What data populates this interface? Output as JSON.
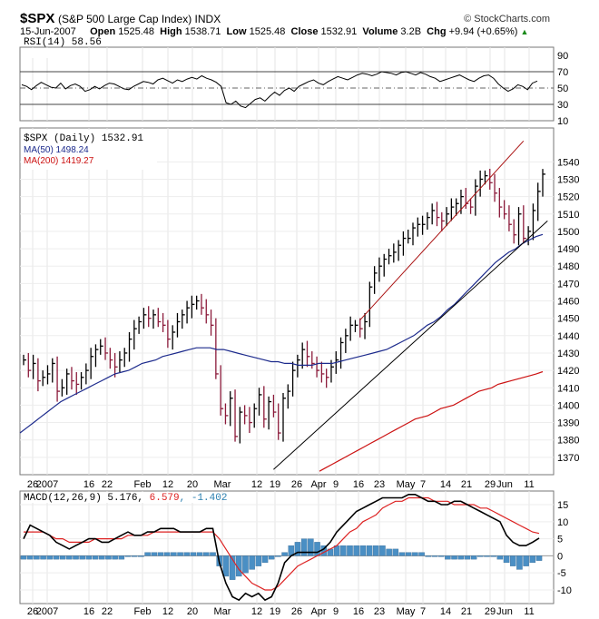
{
  "header": {
    "symbol": "$SPX",
    "name": "(S&P 500 Large Cap Index) INDX",
    "brand": "© StockCharts.com",
    "date": "15-Jun-2007",
    "open_label": "Open",
    "open": "1525.48",
    "high_label": "High",
    "high": "1538.71",
    "low_label": "Low",
    "low": "1525.48",
    "close_label": "Close",
    "close": "1532.91",
    "volume_label": "Volume",
    "volume": "3.2B",
    "chg_label": "Chg",
    "chg": "+9.94 (+0.65%)",
    "chg_up_arrow": "▲"
  },
  "colors": {
    "price_up": "#000000",
    "price_down": "#8b1a3a",
    "ma50": "#1c2a8c",
    "ma200": "#cc1111",
    "channel_upper": "#aa1111",
    "channel_lower": "#000000",
    "macd_hist": "#4a8fc4",
    "macd_signal": "#dd2222",
    "macd_line": "#000000",
    "rsi_line": "#000000"
  },
  "chart_data": [
    {
      "type": "line",
      "panel": "RSI",
      "label": "RSI(14) 58.56",
      "ylim": [
        10,
        100
      ],
      "y_ticks": [
        90,
        70,
        50,
        30,
        10
      ],
      "reference_lines": [
        70,
        50,
        30
      ],
      "values": [
        54,
        52,
        48,
        53,
        57,
        54,
        51,
        50,
        56,
        49,
        53,
        55,
        52,
        46,
        48,
        52,
        49,
        53,
        56,
        55,
        52,
        49,
        48,
        52,
        55,
        58,
        57,
        55,
        60,
        62,
        59,
        56,
        60,
        58,
        61,
        63,
        61,
        65,
        62,
        60,
        57,
        52,
        32,
        30,
        34,
        28,
        26,
        31,
        36,
        38,
        34,
        40,
        45,
        41,
        47,
        50,
        46,
        52,
        55,
        58,
        60,
        56,
        54,
        58,
        61,
        64,
        62,
        60,
        63,
        66,
        68,
        67,
        65,
        67,
        70,
        69,
        68,
        66,
        69,
        70,
        68,
        66,
        69,
        67,
        64,
        62,
        58,
        60,
        62,
        64,
        66,
        63,
        60,
        58,
        62,
        65,
        66,
        62,
        55,
        50,
        46,
        49,
        54,
        52,
        48,
        56,
        58.56
      ]
    },
    {
      "type": "line",
      "panel": "Price",
      "label": "$SPX (Daily) 1532.91",
      "ylim": [
        1360,
        1548
      ],
      "y_ticks": [
        1540,
        1530,
        1520,
        1510,
        1500,
        1490,
        1480,
        1470,
        1460,
        1450,
        1440,
        1430,
        1420,
        1410,
        1400,
        1390,
        1380,
        1370
      ],
      "x_tick_labels": [
        "26",
        "2007",
        "16",
        "22",
        "Feb",
        "12",
        "20",
        "Mar",
        "12",
        "19",
        "26",
        "Apr",
        "9",
        "16",
        "23",
        "May",
        "7",
        "14",
        "21",
        "29",
        "Jun",
        "11"
      ],
      "series": [
        {
          "name": "$SPX (Daily) 1532.91",
          "kind": "hlc_bars"
        },
        {
          "name": "MA(50) 1498.24",
          "kind": "line",
          "last": 1498.24
        },
        {
          "name": "MA(200) 1419.27",
          "kind": "line",
          "last": 1419.27
        }
      ],
      "close": [
        1426,
        1420,
        1424,
        1414,
        1416,
        1418,
        1424,
        1408,
        1410,
        1418,
        1414,
        1412,
        1416,
        1420,
        1428,
        1432,
        1434,
        1430,
        1426,
        1422,
        1426,
        1430,
        1438,
        1444,
        1448,
        1452,
        1450,
        1452,
        1448,
        1446,
        1438,
        1442,
        1448,
        1452,
        1456,
        1458,
        1460,
        1456,
        1452,
        1446,
        1418,
        1398,
        1394,
        1404,
        1382,
        1396,
        1394,
        1390,
        1398,
        1406,
        1392,
        1402,
        1396,
        1384,
        1404,
        1408,
        1420,
        1426,
        1432,
        1428,
        1424,
        1420,
        1418,
        1416,
        1422,
        1426,
        1436,
        1440,
        1446,
        1446,
        1444,
        1448,
        1468,
        1476,
        1480,
        1484,
        1486,
        1488,
        1492,
        1496,
        1496,
        1502,
        1504,
        1504,
        1508,
        1512,
        1508,
        1506,
        1510,
        1514,
        1516,
        1520,
        1516,
        1514,
        1526,
        1530,
        1532,
        1528,
        1522,
        1514,
        1510,
        1504,
        1498,
        1510,
        1496,
        1500,
        1512,
        1523,
        1532.91
      ],
      "ma50": [
        1384,
        1387,
        1390,
        1393,
        1396,
        1399,
        1402,
        1404,
        1406,
        1408,
        1410,
        1412,
        1414,
        1416,
        1418,
        1419,
        1420,
        1422,
        1424,
        1425,
        1426,
        1428,
        1429,
        1430,
        1431,
        1432,
        1433,
        1433,
        1433,
        1432,
        1432,
        1431,
        1430,
        1429,
        1428,
        1427,
        1426,
        1425,
        1425,
        1424,
        1424,
        1423,
        1423,
        1423,
        1424,
        1424,
        1424,
        1425,
        1426,
        1427,
        1428,
        1429,
        1430,
        1431,
        1432,
        1434,
        1436,
        1438,
        1440,
        1443,
        1446,
        1448,
        1451,
        1455,
        1458,
        1462,
        1466,
        1470,
        1474,
        1478,
        1482,
        1485,
        1488,
        1490,
        1493,
        1495,
        1497,
        1498.24
      ],
      "ma200": [
        1362,
        1364,
        1366,
        1368,
        1370,
        1372,
        1374,
        1376,
        1378,
        1380,
        1382,
        1384,
        1386,
        1388,
        1390,
        1392,
        1393,
        1394,
        1396,
        1398,
        1399,
        1400,
        1402,
        1404,
        1406,
        1408,
        1409,
        1410,
        1412,
        1413,
        1414,
        1415,
        1416,
        1417,
        1418,
        1419.27
      ],
      "trend_lines": [
        {
          "name": "upper-channel",
          "from": [
            70,
            1449
          ],
          "to": [
            104,
            1552
          ]
        },
        {
          "name": "lower-channel",
          "from": [
            52,
            1363
          ],
          "to": [
            109,
            1506
          ]
        }
      ]
    },
    {
      "type": "line",
      "panel": "MACD",
      "label": "MACD(12,26,9)",
      "macd_value": "5.176",
      "signal_value": "6.579",
      "hist_value": "-1.402",
      "ylim": [
        -14,
        19
      ],
      "y_ticks": [
        15,
        10,
        5,
        0,
        -5,
        -10
      ],
      "x_tick_labels": [
        "26",
        "2007",
        "16",
        "22",
        "Feb",
        "12",
        "20",
        "Mar",
        "12",
        "19",
        "26",
        "Apr",
        "9",
        "16",
        "23",
        "May",
        "7",
        "14",
        "21",
        "29",
        "Jun",
        "11"
      ],
      "macd": [
        5,
        9,
        8,
        7,
        6,
        4,
        3,
        2,
        3,
        4,
        5,
        5,
        4,
        4,
        5,
        6,
        7,
        6,
        6,
        7,
        7,
        8,
        8,
        8,
        7,
        7,
        7,
        7,
        8,
        8,
        -2,
        -8,
        -12,
        -13,
        -11,
        -12,
        -11,
        -13,
        -12,
        -8,
        -2,
        0,
        1,
        1,
        1,
        1,
        2,
        4,
        7,
        9,
        11,
        13,
        14,
        15,
        16,
        17,
        17,
        17,
        17,
        18,
        18,
        17,
        16,
        16,
        15,
        15,
        16,
        16,
        15,
        14,
        13,
        12,
        11,
        10,
        6,
        4,
        3,
        3,
        4,
        5.176
      ],
      "signal": [
        7,
        7,
        7,
        7,
        6,
        5,
        5,
        4,
        4,
        4,
        4,
        5,
        5,
        5,
        5,
        5,
        6,
        6,
        6,
        6,
        7,
        7,
        7,
        7,
        7,
        7,
        7,
        7,
        7,
        7,
        5,
        2,
        -1,
        -4,
        -6,
        -8,
        -9,
        -10,
        -10,
        -9,
        -7,
        -5,
        -3,
        -2,
        -1,
        0,
        1,
        2,
        3,
        5,
        7,
        8,
        10,
        11,
        12,
        14,
        15,
        16,
        16,
        17,
        17,
        17,
        17,
        16,
        16,
        16,
        15,
        15,
        15,
        15,
        14,
        14,
        13,
        12,
        11,
        10,
        9,
        8,
        7,
        6.579
      ],
      "hist": [
        -1,
        -1,
        -1,
        -1,
        -1,
        -1,
        -1,
        -1,
        -1,
        -1,
        -1,
        -1,
        -1,
        -1,
        -1,
        -1,
        0,
        0,
        0,
        1,
        1,
        1,
        1,
        1,
        1,
        1,
        1,
        1,
        1,
        1,
        -3,
        -6,
        -7,
        -6,
        -5,
        -4,
        -3,
        -2,
        -1,
        0,
        1,
        3,
        4,
        5,
        5,
        4,
        3,
        2,
        3,
        3,
        3,
        3,
        3,
        3,
        3,
        3,
        2,
        2,
        1,
        1,
        1,
        1,
        0,
        0,
        0,
        -1,
        -1,
        -1,
        -1,
        -1,
        0,
        0,
        0,
        -1,
        -2,
        -3,
        -4,
        -3,
        -2,
        -1.402
      ]
    }
  ]
}
